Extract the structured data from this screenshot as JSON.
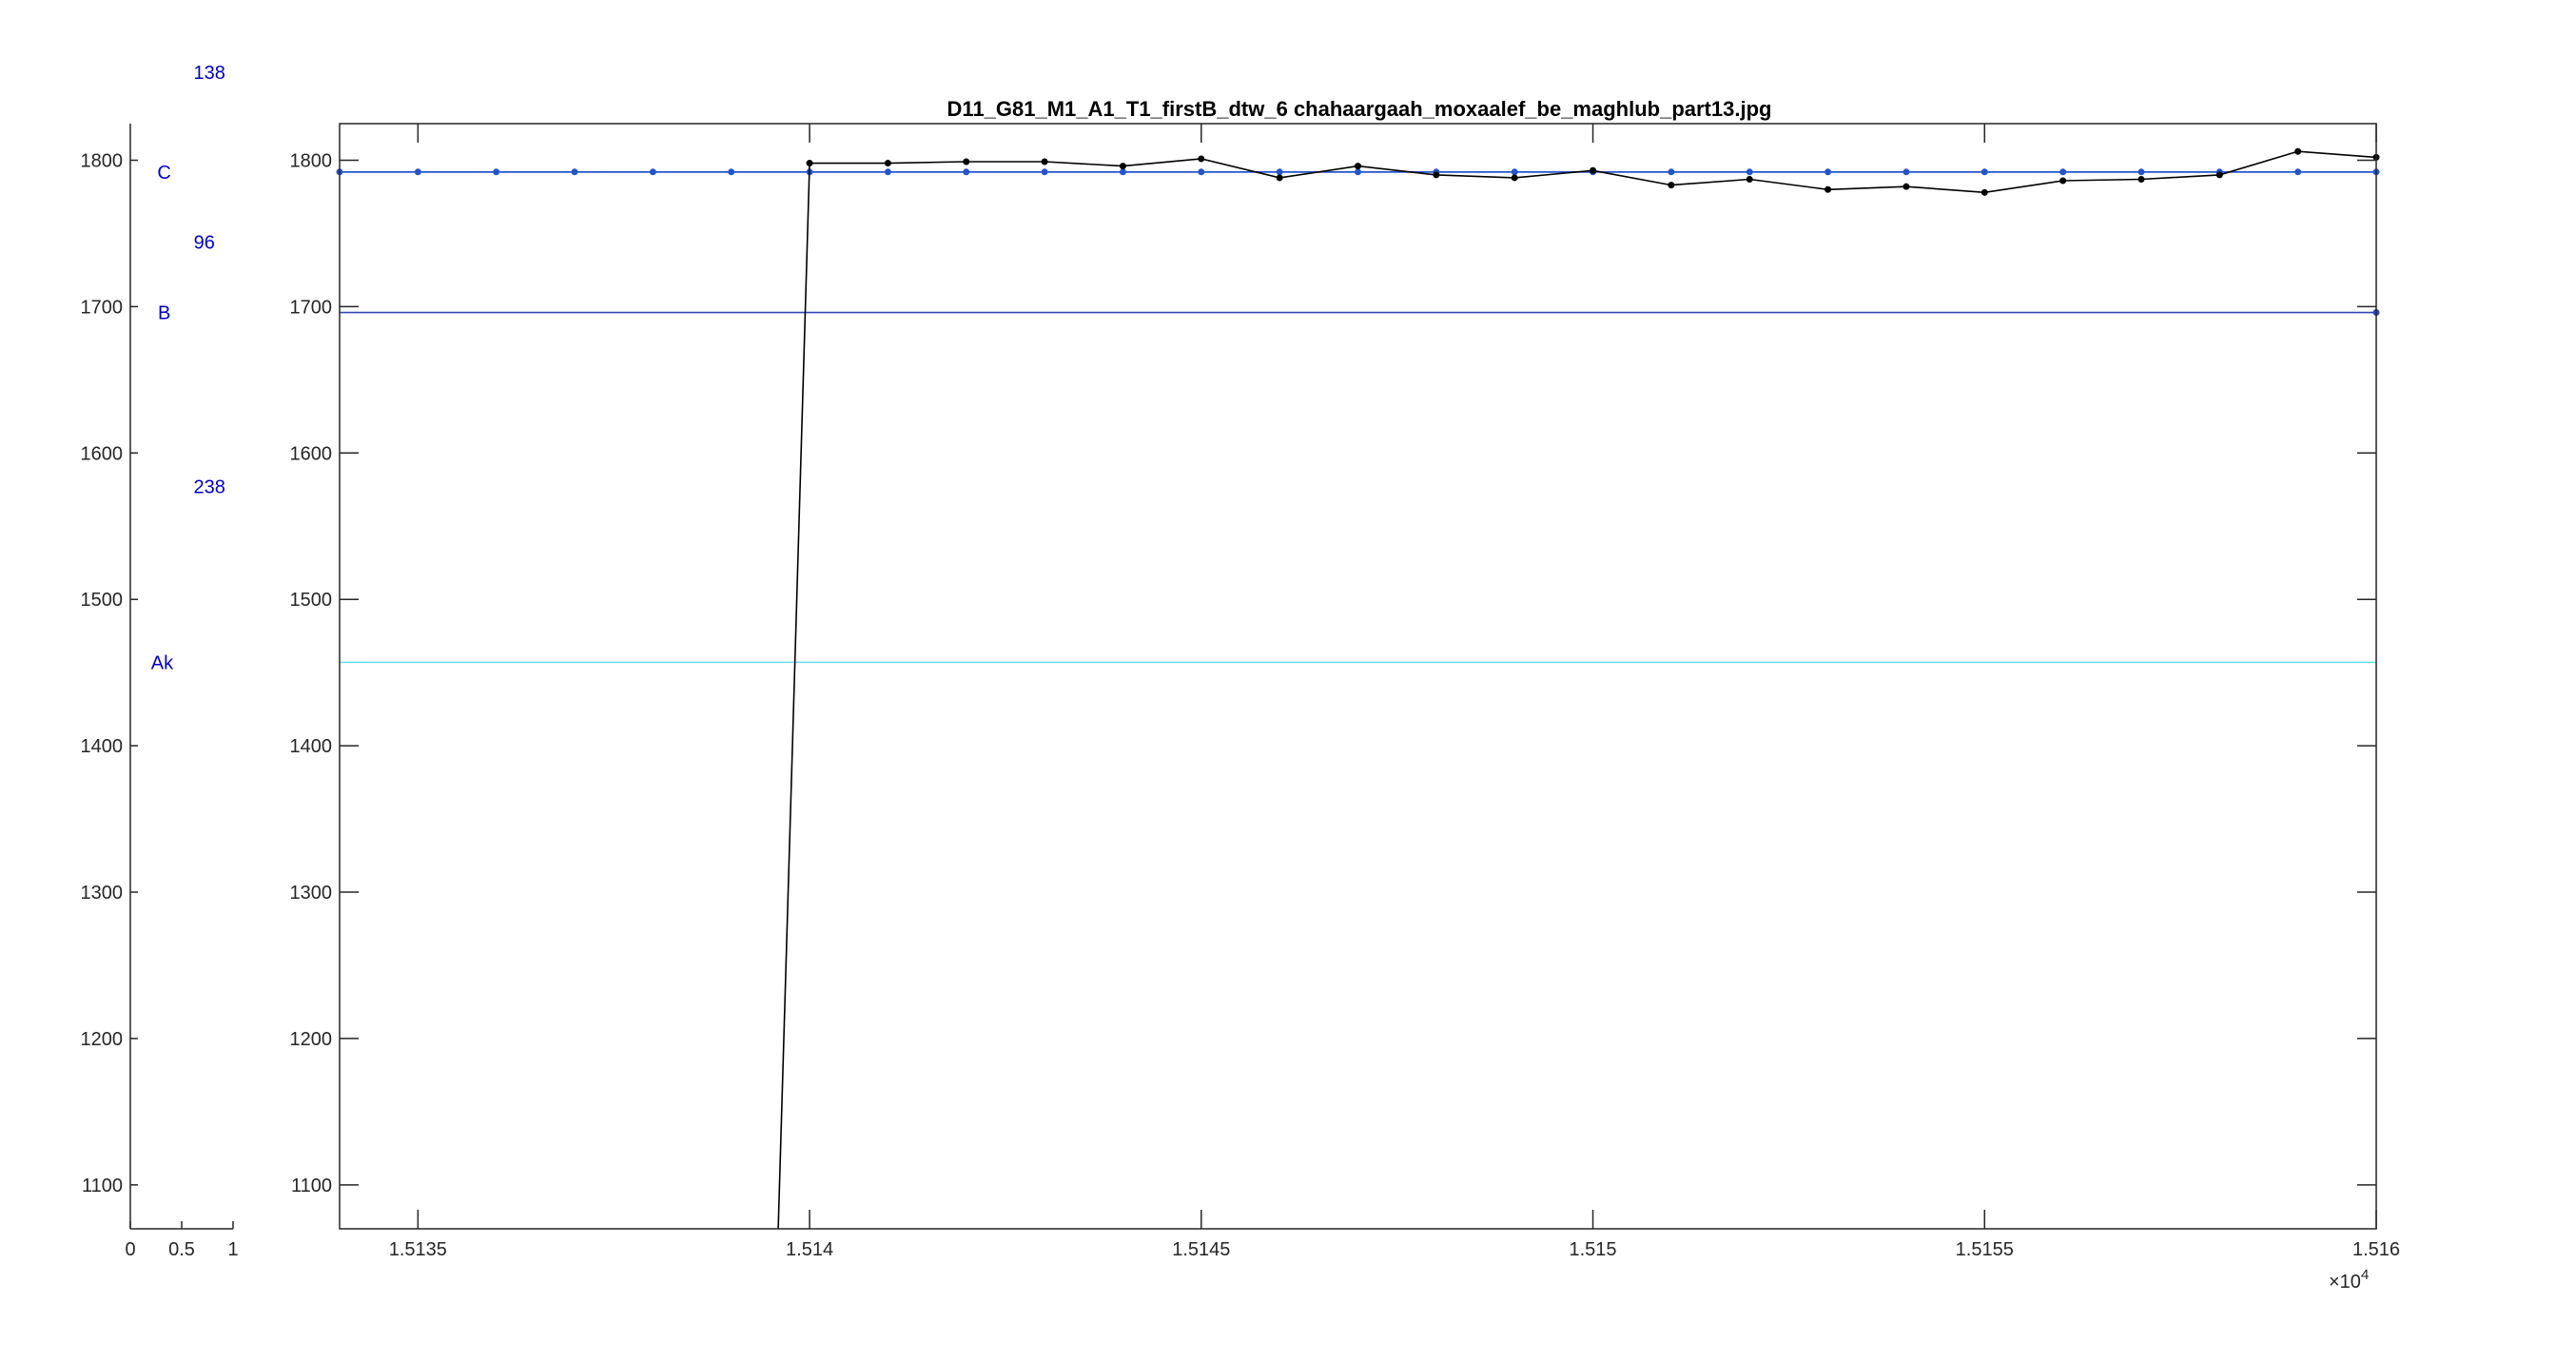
{
  "colors": {
    "axis": "#262626",
    "background": "#ffffff",
    "label_blue": "#0000cc"
  },
  "chart_data": [
    {
      "type": "line",
      "role": "left-annotation-axes",
      "xlim": [
        0,
        1
      ],
      "ylim": [
        1070,
        1825
      ],
      "x_ticks": [
        "0",
        "0.5",
        "1"
      ],
      "y_ticks": [
        "1100",
        "1200",
        "1300",
        "1400",
        "1500",
        "1600",
        "1700",
        "1800"
      ],
      "grid": false,
      "annotations": [
        {
          "text": "138",
          "x": 0.77,
          "y": 1860,
          "color": "#0000cc"
        },
        {
          "text": "C",
          "x": 0.33,
          "y": 1792,
          "color": "#0000cc"
        },
        {
          "text": "96",
          "x": 0.72,
          "y": 1744,
          "color": "#0000cc"
        },
        {
          "text": "B",
          "x": 0.33,
          "y": 1696,
          "color": "#0000cc"
        },
        {
          "text": "238",
          "x": 0.77,
          "y": 1577,
          "color": "#0000cc"
        },
        {
          "text": "Ak",
          "x": 0.31,
          "y": 1457,
          "color": "#0000cc"
        }
      ]
    },
    {
      "type": "line",
      "role": "main-axes",
      "title": "D11_G81_M1_A1_T1_firstB_dtw_6 chahaargaah_moxaalef_be_maghlub_part13.jpg",
      "xlim": [
        15134,
        15160
      ],
      "ylim": [
        1070,
        1825
      ],
      "x_tick_values": [
        15135,
        15140,
        15145,
        15150,
        15155,
        15160
      ],
      "x_ticks": [
        "1.5135",
        "1.514",
        "1.5145",
        "1.515",
        "1.5155",
        "1.516"
      ],
      "x_exponent_base": "×10",
      "x_exponent_power": "4",
      "y_ticks": [
        "1100",
        "1200",
        "1300",
        "1400",
        "1500",
        "1600",
        "1700",
        "1800"
      ],
      "grid": false,
      "reference_lines": [
        {
          "y": 1792,
          "color": "#1f3fbf"
        },
        {
          "y": 1696,
          "color": "#3344bb"
        },
        {
          "y": 1457,
          "color": "#66ddee"
        }
      ],
      "series": [
        {
          "color": "#2255cc",
          "marker": true,
          "x": [
            15134,
            15135,
            15136,
            15137,
            15138,
            15139,
            15140,
            15141,
            15142,
            15143,
            15144,
            15145,
            15146,
            15147,
            15148,
            15149,
            15150,
            15151,
            15152,
            15153,
            15154,
            15155,
            15156,
            15157,
            15158,
            15159,
            15160
          ],
          "y": [
            1792,
            1792,
            1792,
            1792,
            1792,
            1792,
            1792,
            1792,
            1792,
            1792,
            1792,
            1792,
            1792,
            1792,
            1792,
            1792,
            1792,
            1792,
            1792,
            1792,
            1792,
            1792,
            1792,
            1792,
            1792,
            1792,
            1792
          ]
        },
        {
          "color": "#000000",
          "marker": true,
          "x": [
            15139.6,
            15140,
            15141,
            15142,
            15143,
            15144,
            15145,
            15146,
            15147,
            15148,
            15149,
            15150,
            15151,
            15152,
            15153,
            15154,
            15155,
            15156,
            15157,
            15158,
            15159,
            15160
          ],
          "y": [
            1070,
            1798,
            1798,
            1799,
            1799,
            1796,
            1801,
            1788,
            1796,
            1790,
            1788,
            1793,
            1783,
            1787,
            1780,
            1782,
            1778,
            1786,
            1787,
            1790,
            1806,
            1802
          ],
          "marker_from_index": 1
        }
      ],
      "end_marker": {
        "x": 15160,
        "y": 1696,
        "color": "#3344bb"
      }
    }
  ]
}
